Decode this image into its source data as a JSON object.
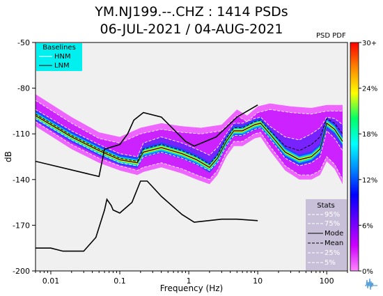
{
  "title_line1": "YM.NJ199.--.CHZ : 1414 PSDs",
  "title_line2": "06-JUL-2021 / 04-AUG-2021",
  "colorbar": {
    "label": "PSD PDF",
    "ticks": [
      "30+",
      "24%",
      "18%",
      "12%",
      "6%",
      "0%"
    ],
    "colors": [
      "#ff0000",
      "#ff8800",
      "#ffff00",
      "#00ff66",
      "#00ffff",
      "#0088ff",
      "#0000ff",
      "#6600ff",
      "#cc00ff",
      "#ff88ff"
    ]
  },
  "baselines_legend": {
    "title": "Baselines",
    "items": [
      "HNM",
      "LNM"
    ],
    "bg_color": "#00f0f0"
  },
  "stats_legend": {
    "title": "Stats",
    "items": [
      {
        "label": "95%",
        "style": "white-dash"
      },
      {
        "label": "75%",
        "style": "white-dash"
      },
      {
        "label": "Mode",
        "style": "black-solid"
      },
      {
        "label": "Mean",
        "style": "black-dash"
      },
      {
        "label": "25%",
        "style": "white-dash"
      },
      {
        "label": "5%",
        "style": "white-dash"
      }
    ],
    "bg_color": "#c8c0d8"
  },
  "chart_data": {
    "type": "line",
    "xlabel": "Frequency (Hz)",
    "ylabel": "dB",
    "x_scale": "log",
    "xlim": [
      0.006,
      200
    ],
    "ylim": [
      -200,
      -50
    ],
    "x_ticks": [
      0.01,
      0.1,
      1,
      10,
      100
    ],
    "x_tick_labels": [
      "0.01",
      "0.1",
      "1",
      "10",
      "100"
    ],
    "y_ticks": [
      -50,
      -80,
      -110,
      -140,
      -170,
      -200
    ],
    "y_tick_labels": [
      "-50",
      "-80",
      "-110",
      "-140",
      "-170",
      "-200"
    ],
    "series": [
      {
        "name": "HNM",
        "color": "#000000",
        "x": [
          0.006,
          0.05,
          0.06,
          0.1,
          0.13,
          0.16,
          0.22,
          0.4,
          0.9,
          1.2,
          2.5,
          5,
          10
        ],
        "y": [
          -128,
          -138,
          -120,
          -117,
          -110,
          -101,
          -96,
          -99,
          -115,
          -118,
          -112,
          -99,
          -91
        ]
      },
      {
        "name": "LNM",
        "color": "#000000",
        "x": [
          0.006,
          0.01,
          0.015,
          0.03,
          0.045,
          0.06,
          0.065,
          0.075,
          0.08,
          0.1,
          0.15,
          0.2,
          0.25,
          0.4,
          0.8,
          1.2,
          3,
          5,
          10
        ],
        "y": [
          -185,
          -185,
          -187,
          -187,
          -178,
          -160,
          -153,
          -157,
          -160,
          -162,
          -155,
          -141,
          -141,
          -151,
          -163,
          -168,
          -166,
          -166,
          -167
        ]
      },
      {
        "name": "Mode",
        "color": "#000000",
        "x": [
          0.006,
          0.02,
          0.05,
          0.1,
          0.18,
          0.22,
          0.4,
          0.8,
          1.3,
          2.0,
          2.6,
          3.5,
          4.5,
          6,
          9,
          11,
          15,
          25,
          40,
          60,
          80,
          100,
          130,
          170
        ],
        "y": [
          -98,
          -112,
          -121,
          -127,
          -129,
          -122,
          -119,
          -123,
          -127,
          -132,
          -126,
          -115,
          -108,
          -108,
          -104,
          -103,
          -110,
          -122,
          -127,
          -125,
          -120,
          -103,
          -107,
          -115
        ]
      },
      {
        "name": "Mean",
        "color": "#000000",
        "x": [
          0.006,
          0.02,
          0.05,
          0.1,
          0.18,
          0.22,
          0.4,
          0.8,
          1.3,
          2.0,
          2.6,
          3.5,
          4.5,
          6,
          9,
          11,
          15,
          25,
          40,
          60,
          80,
          100,
          130,
          170
        ],
        "y": [
          -97,
          -111,
          -120,
          -126,
          -128,
          -120,
          -117,
          -121,
          -125,
          -130,
          -124,
          -113,
          -106,
          -106,
          -102,
          -101,
          -108,
          -118,
          -121,
          -117,
          -112,
          -100,
          -103,
          -110
        ]
      },
      {
        "name": "95%",
        "color": "#ffffff",
        "x": [
          0.006,
          0.02,
          0.05,
          0.1,
          0.2,
          0.4,
          0.8,
          1.5,
          3,
          5,
          7,
          10,
          15,
          30,
          60,
          100,
          170
        ],
        "y": [
          -88,
          -103,
          -113,
          -116,
          -110,
          -107,
          -109,
          -110,
          -108,
          -98,
          -102,
          -96,
          -94,
          -96,
          -97,
          -95,
          -95
        ]
      },
      {
        "name": "75%",
        "color": "#ffffff",
        "x": [
          0.006,
          0.02,
          0.05,
          0.1,
          0.18,
          0.22,
          0.4,
          0.8,
          1.3,
          2.0,
          2.6,
          3.5,
          4.5,
          6,
          9,
          11,
          15,
          25,
          40,
          60,
          80,
          100,
          130,
          170
        ],
        "y": [
          -94,
          -108,
          -117,
          -123,
          -125,
          -116,
          -112,
          -116,
          -120,
          -124,
          -119,
          -110,
          -103,
          -103,
          -100,
          -99,
          -105,
          -112,
          -114,
          -110,
          -106,
          -99,
          -100,
          -104
        ]
      },
      {
        "name": "25%",
        "color": "#ffffff",
        "x": [
          0.006,
          0.02,
          0.05,
          0.1,
          0.18,
          0.22,
          0.4,
          0.8,
          1.3,
          2.0,
          2.6,
          3.5,
          4.5,
          6,
          9,
          11,
          15,
          25,
          40,
          60,
          80,
          100,
          130,
          170
        ],
        "y": [
          -100,
          -114,
          -123,
          -129,
          -131,
          -125,
          -122,
          -126,
          -130,
          -134,
          -129,
          -118,
          -111,
          -111,
          -107,
          -106,
          -113,
          -126,
          -131,
          -129,
          -125,
          -108,
          -113,
          -121
        ]
      },
      {
        "name": "5%",
        "color": "#ffffff",
        "x": [
          0.006,
          0.02,
          0.05,
          0.1,
          0.18,
          0.22,
          0.4,
          0.8,
          1.3,
          2.0,
          2.6,
          3.5,
          4.5,
          6,
          9,
          11,
          15,
          25,
          40,
          60,
          80,
          100,
          130,
          170
        ],
        "y": [
          -102,
          -117,
          -126,
          -131,
          -134,
          -132,
          -129,
          -133,
          -137,
          -140,
          -134,
          -122,
          -115,
          -115,
          -110,
          -109,
          -118,
          -131,
          -137,
          -137,
          -134,
          -125,
          -130,
          -140
        ]
      }
    ]
  }
}
